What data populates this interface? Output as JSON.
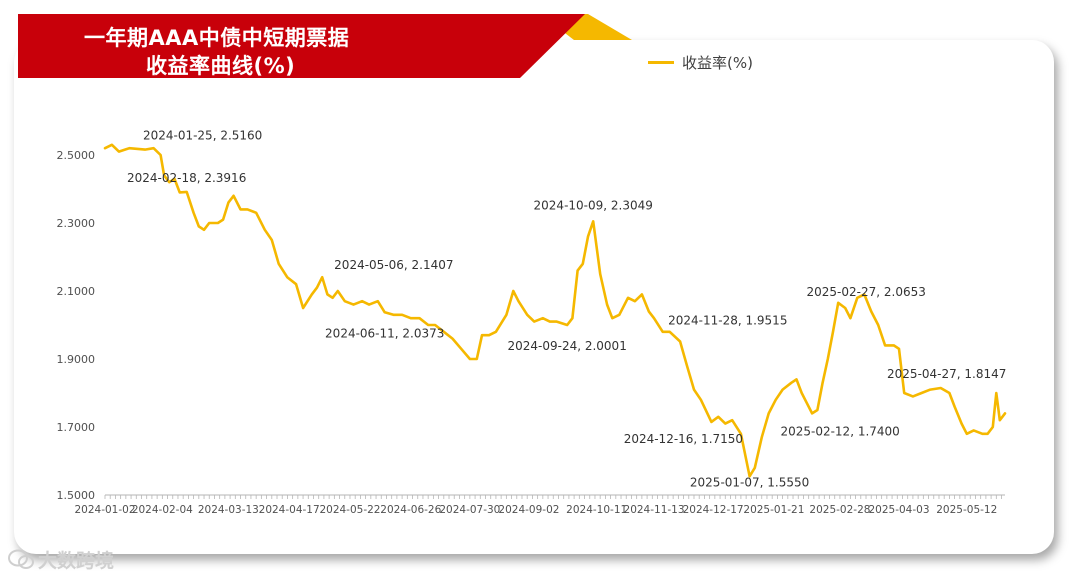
{
  "title": {
    "line1": "一年期AAA中债中短期票据",
    "line2": "收益率曲线(%)"
  },
  "legend": {
    "label": "收益率(%)"
  },
  "watermark": {
    "text": "大数跨境",
    "icon": "wechat-logo-icon"
  },
  "colors": {
    "line": "#f5b800",
    "banner": "#c8000a",
    "banner_accent": "#f5b800"
  },
  "chart_data": {
    "type": "line",
    "ylim": [
      1.5,
      2.55
    ],
    "yticks": [
      "2.5000",
      "2.3000",
      "2.1000",
      "1.9000",
      "1.7000",
      "1.5000"
    ],
    "ytick_values": [
      2.5,
      2.3,
      2.1,
      1.9,
      1.7,
      1.5
    ],
    "xticks": [
      "2024-01-02",
      "2024-02-04",
      "2024-03-13",
      "2024-04-17",
      "2024-05-22",
      "2024-06-26",
      "2024-07-30",
      "2024-09-02",
      "2024-10-11",
      "2024-11-13",
      "2024-12-17",
      "2025-01-21",
      "2025-02-28",
      "2025-04-03",
      "2025-05-12"
    ],
    "x_range": [
      "2024-01-02",
      "2025-06-03"
    ],
    "grid": false,
    "legend_position": "top-right",
    "series": [
      {
        "name": "收益率(%)",
        "points": [
          [
            "2024-01-02",
            2.52
          ],
          [
            "2024-01-06",
            2.53
          ],
          [
            "2024-01-10",
            2.51
          ],
          [
            "2024-01-16",
            2.52
          ],
          [
            "2024-01-25",
            2.516
          ],
          [
            "2024-01-30",
            2.52
          ],
          [
            "2024-02-03",
            2.5
          ],
          [
            "2024-02-05",
            2.44
          ],
          [
            "2024-02-08",
            2.42
          ],
          [
            "2024-02-11",
            2.43
          ],
          [
            "2024-02-14",
            2.39
          ],
          [
            "2024-02-18",
            2.3916
          ],
          [
            "2024-02-22",
            2.33
          ],
          [
            "2024-02-25",
            2.29
          ],
          [
            "2024-02-28",
            2.28
          ],
          [
            "2024-03-02",
            2.3
          ],
          [
            "2024-03-07",
            2.3
          ],
          [
            "2024-03-10",
            2.31
          ],
          [
            "2024-03-13",
            2.36
          ],
          [
            "2024-03-16",
            2.38
          ],
          [
            "2024-03-20",
            2.34
          ],
          [
            "2024-03-24",
            2.34
          ],
          [
            "2024-03-29",
            2.33
          ],
          [
            "2024-04-03",
            2.28
          ],
          [
            "2024-04-07",
            2.25
          ],
          [
            "2024-04-11",
            2.18
          ],
          [
            "2024-04-16",
            2.14
          ],
          [
            "2024-04-21",
            2.12
          ],
          [
            "2024-04-25",
            2.05
          ],
          [
            "2024-04-30",
            2.09
          ],
          [
            "2024-05-03",
            2.11
          ],
          [
            "2024-05-06",
            2.1407
          ],
          [
            "2024-05-09",
            2.09
          ],
          [
            "2024-05-12",
            2.08
          ],
          [
            "2024-05-15",
            2.1
          ],
          [
            "2024-05-19",
            2.07
          ],
          [
            "2024-05-24",
            2.06
          ],
          [
            "2024-05-29",
            2.07
          ],
          [
            "2024-06-02",
            2.06
          ],
          [
            "2024-06-07",
            2.07
          ],
          [
            "2024-06-11",
            2.0373
          ],
          [
            "2024-06-16",
            2.03
          ],
          [
            "2024-06-21",
            2.03
          ],
          [
            "2024-06-26",
            2.02
          ],
          [
            "2024-07-01",
            2.02
          ],
          [
            "2024-07-06",
            2.0
          ],
          [
            "2024-07-10",
            2.0
          ],
          [
            "2024-07-15",
            1.98
          ],
          [
            "2024-07-20",
            1.96
          ],
          [
            "2024-07-25",
            1.93
          ],
          [
            "2024-07-30",
            1.9
          ],
          [
            "2024-08-03",
            1.9
          ],
          [
            "2024-08-06",
            1.97
          ],
          [
            "2024-08-10",
            1.97
          ],
          [
            "2024-08-14",
            1.98
          ],
          [
            "2024-08-20",
            2.03
          ],
          [
            "2024-08-24",
            2.1
          ],
          [
            "2024-08-27",
            2.07
          ],
          [
            "2024-09-01",
            2.03
          ],
          [
            "2024-09-05",
            2.01
          ],
          [
            "2024-09-10",
            2.02
          ],
          [
            "2024-09-14",
            2.01
          ],
          [
            "2024-09-18",
            2.01
          ],
          [
            "2024-09-24",
            2.0001
          ],
          [
            "2024-09-27",
            2.02
          ],
          [
            "2024-09-30",
            2.16
          ],
          [
            "2024-10-03",
            2.18
          ],
          [
            "2024-10-06",
            2.26
          ],
          [
            "2024-10-09",
            2.3049
          ],
          [
            "2024-10-13",
            2.15
          ],
          [
            "2024-10-17",
            2.06
          ],
          [
            "2024-10-20",
            2.02
          ],
          [
            "2024-10-24",
            2.03
          ],
          [
            "2024-10-29",
            2.08
          ],
          [
            "2024-11-02",
            2.07
          ],
          [
            "2024-11-06",
            2.09
          ],
          [
            "2024-11-10",
            2.04
          ],
          [
            "2024-11-13",
            2.02
          ],
          [
            "2024-11-18",
            1.98
          ],
          [
            "2024-11-22",
            1.98
          ],
          [
            "2024-11-28",
            1.9515
          ],
          [
            "2024-12-02",
            1.88
          ],
          [
            "2024-12-06",
            1.81
          ],
          [
            "2024-12-10",
            1.78
          ],
          [
            "2024-12-16",
            1.715
          ],
          [
            "2024-12-20",
            1.73
          ],
          [
            "2024-12-24",
            1.71
          ],
          [
            "2024-12-28",
            1.72
          ],
          [
            "2025-01-02",
            1.68
          ],
          [
            "2025-01-07",
            1.555
          ],
          [
            "2025-01-10",
            1.58
          ],
          [
            "2025-01-14",
            1.67
          ],
          [
            "2025-01-18",
            1.74
          ],
          [
            "2025-01-22",
            1.78
          ],
          [
            "2025-01-26",
            1.81
          ],
          [
            "2025-01-31",
            1.83
          ],
          [
            "2025-02-03",
            1.84
          ],
          [
            "2025-02-06",
            1.8
          ],
          [
            "2025-02-09",
            1.77
          ],
          [
            "2025-02-12",
            1.74
          ],
          [
            "2025-02-15",
            1.75
          ],
          [
            "2025-02-18",
            1.83
          ],
          [
            "2025-02-21",
            1.9
          ],
          [
            "2025-02-24",
            1.98
          ],
          [
            "2025-02-27",
            2.0653
          ],
          [
            "2025-03-03",
            2.05
          ],
          [
            "2025-03-06",
            2.02
          ],
          [
            "2025-03-10",
            2.08
          ],
          [
            "2025-03-14",
            2.09
          ],
          [
            "2025-03-18",
            2.04
          ],
          [
            "2025-03-22",
            2.0
          ],
          [
            "2025-03-26",
            1.94
          ],
          [
            "2025-03-31",
            1.94
          ],
          [
            "2025-04-03",
            1.93
          ],
          [
            "2025-04-06",
            1.8
          ],
          [
            "2025-04-11",
            1.79
          ],
          [
            "2025-04-16",
            1.8
          ],
          [
            "2025-04-21",
            1.81
          ],
          [
            "2025-04-27",
            1.8147
          ],
          [
            "2025-05-02",
            1.8
          ],
          [
            "2025-05-05",
            1.76
          ],
          [
            "2025-05-09",
            1.71
          ],
          [
            "2025-05-12",
            1.68
          ],
          [
            "2025-05-16",
            1.69
          ],
          [
            "2025-05-21",
            1.68
          ],
          [
            "2025-05-24",
            1.68
          ],
          [
            "2025-05-27",
            1.7
          ],
          [
            "2025-05-29",
            1.8
          ],
          [
            "2025-05-31",
            1.72
          ],
          [
            "2025-06-03",
            1.74
          ]
        ]
      }
    ],
    "annotations": [
      {
        "date": "2024-01-25",
        "value": 2.516,
        "text": "2024-01-25, 2.5160",
        "anchor": "start",
        "dx": -2,
        "dy": -10
      },
      {
        "date": "2024-02-18",
        "value": 2.3916,
        "text": "2024-02-18, 2.3916",
        "anchor": "middle",
        "dx": 0,
        "dy": -10
      },
      {
        "date": "2024-05-06",
        "value": 2.1407,
        "text": "2024-05-06, 2.1407",
        "anchor": "start",
        "dx": 12,
        "dy": -8
      },
      {
        "date": "2024-06-11",
        "value": 2.0373,
        "text": "2024-06-11, 2.0373",
        "anchor": "middle",
        "dx": 0,
        "dy": 25
      },
      {
        "date": "2024-09-24",
        "value": 2.0001,
        "text": "2024-09-24, 2.0001",
        "anchor": "middle",
        "dx": 0,
        "dy": 25
      },
      {
        "date": "2024-10-09",
        "value": 2.3049,
        "text": "2024-10-09, 2.3049",
        "anchor": "middle",
        "dx": 0,
        "dy": -12
      },
      {
        "date": "2024-11-28",
        "value": 1.9515,
        "text": "2024-11-28, 1.9515",
        "anchor": "start",
        "dx": -12,
        "dy": -17
      },
      {
        "date": "2024-12-16",
        "value": 1.715,
        "text": "2024-12-16, 1.7150",
        "anchor": "middle",
        "dx": -28,
        "dy": 21
      },
      {
        "date": "2025-01-07",
        "value": 1.555,
        "text": "2025-01-07, 1.5550",
        "anchor": "middle",
        "dx": 0,
        "dy": 10
      },
      {
        "date": "2025-02-12",
        "value": 1.74,
        "text": "2025-02-12, 1.7400",
        "anchor": "middle",
        "dx": 28,
        "dy": 22
      },
      {
        "date": "2025-02-27",
        "value": 2.0653,
        "text": "2025-02-27, 2.0653",
        "anchor": "middle",
        "dx": 28,
        "dy": -7
      },
      {
        "date": "2025-04-27",
        "value": 1.8147,
        "text": "2025-04-27, 1.8147",
        "anchor": "middle",
        "dx": 6,
        "dy": -10
      }
    ]
  }
}
